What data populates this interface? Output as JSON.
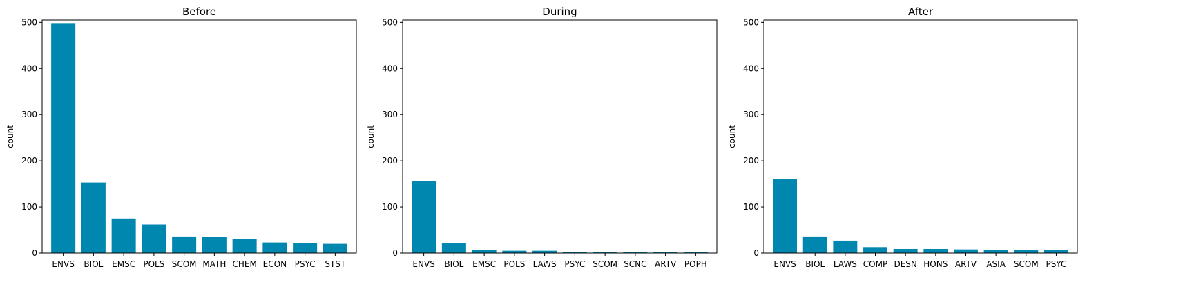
{
  "colors": {
    "bar": "#0087AF",
    "axis": "#000000",
    "background": "#ffffff"
  },
  "chart_data": [
    {
      "type": "bar",
      "title": "Before",
      "ylabel": "count",
      "ylim": [
        0,
        505
      ],
      "yticks": [
        0,
        100,
        200,
        300,
        400,
        500
      ],
      "categories": [
        "ENVS",
        "BIOL",
        "EMSC",
        "POLS",
        "SCOM",
        "MATH",
        "CHEM",
        "ECON",
        "PSYC",
        "STST"
      ],
      "values": [
        497,
        153,
        75,
        62,
        36,
        35,
        31,
        23,
        21,
        20
      ]
    },
    {
      "type": "bar",
      "title": "During",
      "ylabel": "count",
      "ylim": [
        0,
        505
      ],
      "yticks": [
        0,
        100,
        200,
        300,
        400,
        500
      ],
      "categories": [
        "ENVS",
        "BIOL",
        "EMSC",
        "POLS",
        "LAWS",
        "PSYC",
        "SCOM",
        "SCNC",
        "ARTV",
        "POPH"
      ],
      "values": [
        156,
        22,
        7,
        5,
        5,
        3,
        3,
        3,
        2,
        2
      ]
    },
    {
      "type": "bar",
      "title": "After",
      "ylabel": "count",
      "ylim": [
        0,
        505
      ],
      "yticks": [
        0,
        100,
        200,
        300,
        400,
        500
      ],
      "categories": [
        "ENVS",
        "BIOL",
        "LAWS",
        "COMP",
        "DESN",
        "HONS",
        "ARTV",
        "ASIA",
        "SCOM",
        "PSYC"
      ],
      "values": [
        160,
        36,
        27,
        13,
        9,
        9,
        8,
        6,
        6,
        6
      ]
    }
  ]
}
